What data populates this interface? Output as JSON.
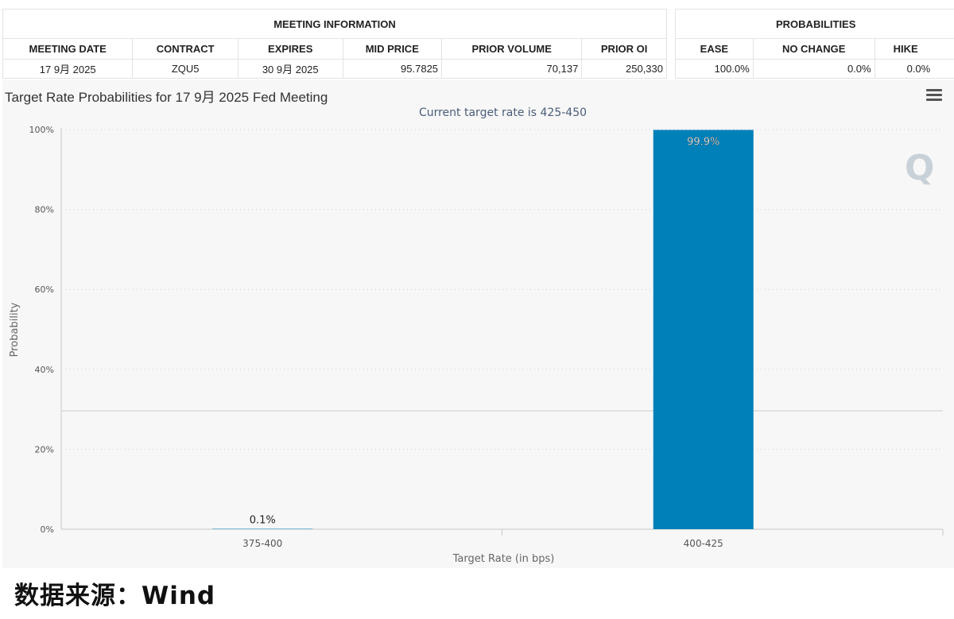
{
  "meeting_info": {
    "group_title": "MEETING INFORMATION",
    "headers": [
      "MEETING DATE",
      "CONTRACT",
      "EXPIRES",
      "MID PRICE",
      "PRIOR VOLUME",
      "PRIOR OI"
    ],
    "row": [
      "17 9月 2025",
      "ZQU5",
      "30 9月 2025",
      "95.7825",
      "70,137",
      "250,330"
    ]
  },
  "probabilities": {
    "group_title": "PROBABILITIES",
    "headers": [
      "EASE",
      "NO CHANGE",
      "HIKE"
    ],
    "row": [
      "100.0%",
      "0.0%",
      "0.0%"
    ]
  },
  "chart_data": {
    "type": "bar",
    "title": "Target Rate Probabilities for 17 9月 2025 Fed Meeting",
    "subtitle": "Current target rate is 425-450",
    "categories": [
      "375-400",
      "400-425"
    ],
    "values": [
      0.1,
      99.9
    ],
    "data_labels": [
      "0.1%",
      "99.9%"
    ],
    "xlabel": "Target Rate (in bps)",
    "ylabel": "Probability",
    "ylim": [
      0,
      100
    ],
    "yticks": [
      "0%",
      "20%",
      "40%",
      "60%",
      "80%",
      "100%"
    ],
    "ytick_values": [
      0,
      20,
      40,
      60,
      80,
      100
    ],
    "bar_color": "#0080b8",
    "grid": true
  },
  "source_label": "数据来源：Wind"
}
